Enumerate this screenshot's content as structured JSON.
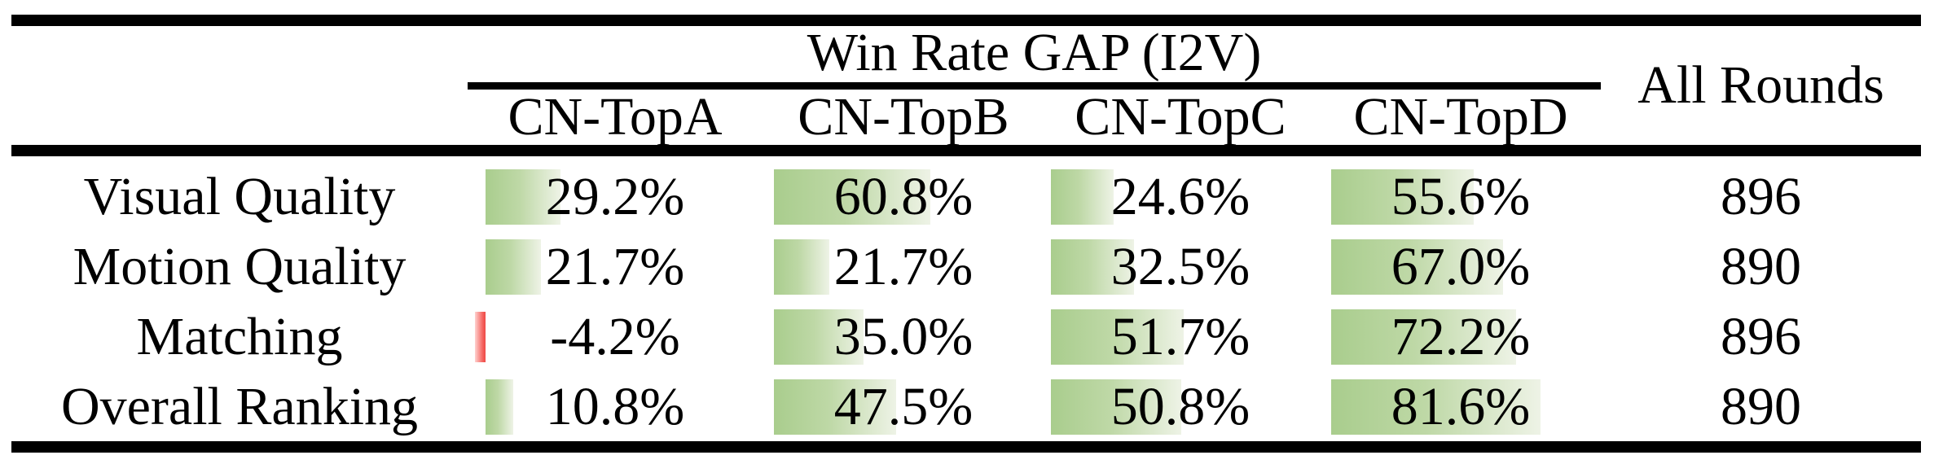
{
  "table": {
    "title": "Win Rate GAP (I2V)",
    "all_rounds_header": "All Rounds",
    "columns": [
      "CN-TopA",
      "CN-TopB",
      "CN-TopC",
      "CN-TopD"
    ],
    "rows": [
      {
        "label": "Visual Quality",
        "cells": [
          "29.2%",
          "60.8%",
          "24.6%",
          "55.6%"
        ],
        "values": [
          29.2,
          60.8,
          24.6,
          55.6
        ],
        "all_rounds": "896"
      },
      {
        "label": "Motion Quality",
        "cells": [
          "21.7%",
          "21.7%",
          "32.5%",
          "67.0%"
        ],
        "values": [
          21.7,
          21.7,
          32.5,
          67.0
        ],
        "all_rounds": "890"
      },
      {
        "label": "Matching",
        "cells": [
          "-4.2%",
          "35.0%",
          "51.7%",
          "72.2%"
        ],
        "values": [
          -4.2,
          35.0,
          51.7,
          72.2
        ],
        "all_rounds": "896"
      },
      {
        "label": "Overall Ranking",
        "cells": [
          "10.8%",
          "47.5%",
          "50.8%",
          "81.6%"
        ],
        "values": [
          10.8,
          47.5,
          50.8,
          81.6
        ],
        "all_rounds": "890"
      }
    ],
    "colors": {
      "positive_bar_start": "#a9cd8d",
      "positive_bar_end": "#eef3e6",
      "negative_bar_start": "#ffd2d0",
      "negative_bar_end": "#ee4a47",
      "rule": "#000000",
      "text": "#000000",
      "background": "#ffffff"
    }
  },
  "chart_data": {
    "type": "table",
    "title": "Win Rate GAP (I2V)",
    "categories": [
      "Visual Quality",
      "Motion Quality",
      "Matching",
      "Overall Ranking"
    ],
    "series": [
      {
        "name": "CN-TopA",
        "values": [
          29.2,
          21.7,
          -4.2,
          10.8
        ]
      },
      {
        "name": "CN-TopB",
        "values": [
          60.8,
          21.7,
          35.0,
          47.5
        ]
      },
      {
        "name": "CN-TopC",
        "values": [
          24.6,
          32.5,
          51.7,
          50.8
        ]
      },
      {
        "name": "CN-TopD",
        "values": [
          55.6,
          67.0,
          72.2,
          81.6
        ]
      },
      {
        "name": "All Rounds",
        "values": [
          896,
          890,
          896,
          890
        ]
      }
    ],
    "value_unit": "%",
    "databar_range": [
      -4.2,
      81.6
    ],
    "layout": "data bars rendered behind cell values, left-aligned per column; negative values shown as red bar extending left of baseline"
  }
}
